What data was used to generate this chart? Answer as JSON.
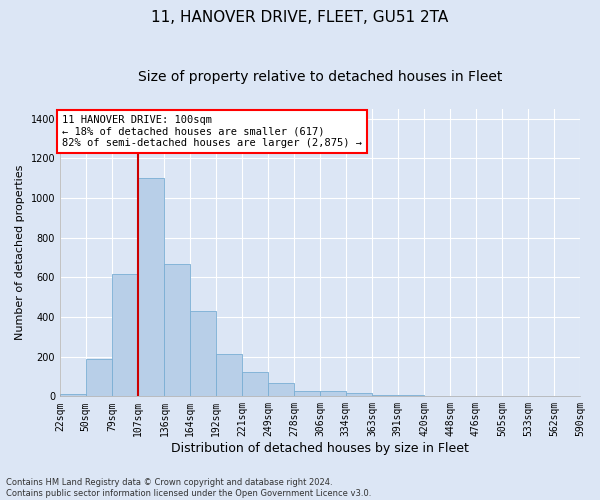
{
  "title": "11, HANOVER DRIVE, FLEET, GU51 2TA",
  "subtitle": "Size of property relative to detached houses in Fleet",
  "xlabel": "Distribution of detached houses by size in Fleet",
  "ylabel": "Number of detached properties",
  "footer_line1": "Contains HM Land Registry data © Crown copyright and database right 2024.",
  "footer_line2": "Contains public sector information licensed under the Open Government Licence v3.0.",
  "annotation_line1": "11 HANOVER DRIVE: 100sqm",
  "annotation_line2": "← 18% of detached houses are smaller (617)",
  "annotation_line3": "82% of semi-detached houses are larger (2,875) →",
  "bar_color": "#b8cfe8",
  "bar_edge_color": "#7aaed4",
  "red_line_x": 107,
  "red_line_color": "#cc0000",
  "bins": [
    22,
    50,
    79,
    107,
    136,
    164,
    192,
    221,
    249,
    278,
    306,
    334,
    363,
    391,
    420,
    448,
    476,
    505,
    533,
    562,
    590
  ],
  "values": [
    10,
    190,
    615,
    1100,
    665,
    430,
    215,
    125,
    65,
    25,
    25,
    15,
    8,
    5,
    3,
    2,
    2,
    2,
    1,
    1
  ],
  "ylim": [
    0,
    1450
  ],
  "yticks": [
    0,
    200,
    400,
    600,
    800,
    1000,
    1200,
    1400
  ],
  "bg_color": "#dce6f5",
  "plot_bg_color": "#dce6f5",
  "grid_color": "#ffffff",
  "title_fontsize": 11,
  "subtitle_fontsize": 10,
  "xlabel_fontsize": 9,
  "ylabel_fontsize": 8,
  "tick_fontsize": 7,
  "annotation_fontsize": 7.5,
  "footer_fontsize": 6
}
